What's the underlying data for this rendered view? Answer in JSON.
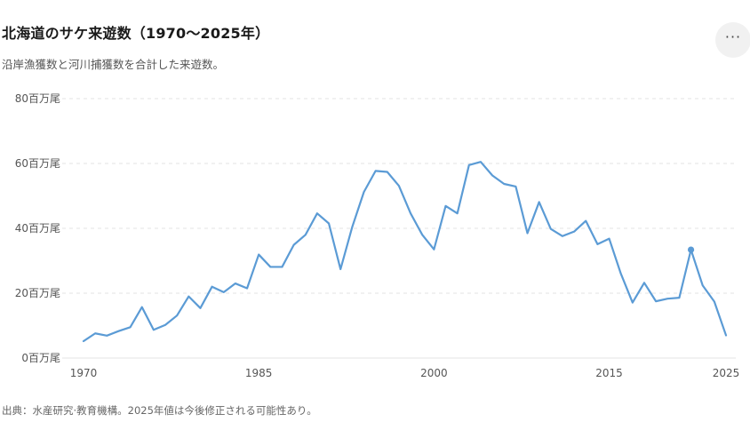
{
  "header": {
    "title": "北海道のサケ来遊数（1970〜2025年）",
    "subtitle": "沿岸漁獲数と河川捕獲数を合計した来遊数。",
    "menu_icon": "more-horizontal-icon",
    "menu_label": "···"
  },
  "footer": {
    "source": "出典：水産研究·教育機構。2025年値は今後修正される可能性あり。"
  },
  "colors": {
    "line": "#5b9bd5",
    "grid": "#e3e3e3",
    "axis_text": "#555555"
  },
  "chart_data": {
    "type": "line",
    "title": "北海道のサケ来遊数（1970〜2025年）",
    "subtitle": "沿岸漁獲数と河川捕獲数を合計した来遊数。",
    "xlabel": "",
    "ylabel": "",
    "y_unit": "百万尾",
    "xlim": [
      1970,
      2025
    ],
    "ylim": [
      0,
      80
    ],
    "x_ticks": [
      1970,
      1985,
      2000,
      2015,
      2025
    ],
    "y_ticks": [
      0,
      20,
      40,
      60,
      80
    ],
    "y_tick_labels": [
      "0百万尾",
      "20百万尾",
      "40百万尾",
      "60百万尾",
      "80百万尾"
    ],
    "grid": true,
    "legend": "none",
    "highlight_point": {
      "x": 2022,
      "y": 33.4
    },
    "series": [
      {
        "x": [
          1970,
          1971,
          1972,
          1973,
          1974,
          1975,
          1976,
          1977,
          1978,
          1979,
          1980,
          1981,
          1982,
          1983,
          1984,
          1985,
          1986,
          1987,
          1988,
          1989,
          1990,
          1991,
          1992,
          1993,
          1994,
          1995,
          1996,
          1997,
          1998,
          1999,
          2000,
          2001,
          2002,
          2003,
          2004,
          2005,
          2006,
          2007,
          2008,
          2009,
          2010,
          2011,
          2012,
          2013,
          2014,
          2015,
          2016,
          2017,
          2018,
          2019,
          2020,
          2021,
          2022,
          2023,
          2024,
          2025
        ],
        "values": [
          5.2,
          7.6,
          6.9,
          8.3,
          9.5,
          15.7,
          8.7,
          10.2,
          13.1,
          19.0,
          15.4,
          22.0,
          20.3,
          23.0,
          21.5,
          31.9,
          28.1,
          28.1,
          34.9,
          38.0,
          44.6,
          41.5,
          27.4,
          40.4,
          51.2,
          57.7,
          57.4,
          53.1,
          44.6,
          38.0,
          33.5,
          46.9,
          44.6,
          59.5,
          60.5,
          56.3,
          53.7,
          52.9,
          38.5,
          48.1,
          39.8,
          37.6,
          39.0,
          42.3,
          35.1,
          36.8,
          26.0,
          17.1,
          23.2,
          17.5,
          18.3,
          18.6,
          33.4,
          22.4,
          17.4,
          7.0
        ]
      }
    ]
  }
}
